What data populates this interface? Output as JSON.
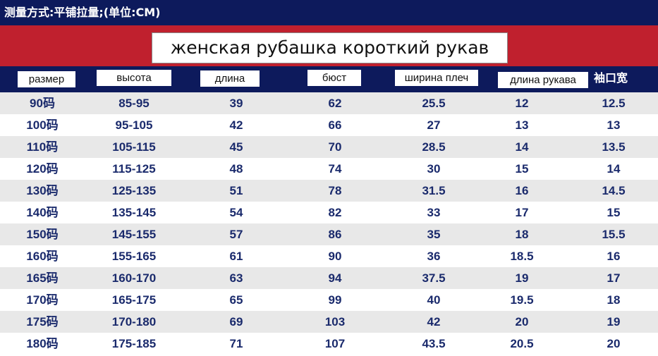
{
  "top_note": "测量方式:平铺拉量;(单位:CM)",
  "title": "женская рубашка короткий рукав",
  "colors": {
    "navy": "#0d1a5c",
    "red": "#c0202e",
    "text_blue": "#1a2a6c",
    "row_gray": "#e8e8e8"
  },
  "headers": [
    "размер",
    "высота",
    "длина",
    "бюст",
    "ширина плеч",
    "длина рукава",
    "袖口宽"
  ],
  "rows": [
    [
      "90码",
      "85-95",
      "39",
      "62",
      "25.5",
      "12",
      "12.5"
    ],
    [
      "100码",
      "95-105",
      "42",
      "66",
      "27",
      "13",
      "13"
    ],
    [
      "110码",
      "105-115",
      "45",
      "70",
      "28.5",
      "14",
      "13.5"
    ],
    [
      "120码",
      "115-125",
      "48",
      "74",
      "30",
      "15",
      "14"
    ],
    [
      "130码",
      "125-135",
      "51",
      "78",
      "31.5",
      "16",
      "14.5"
    ],
    [
      "140码",
      "135-145",
      "54",
      "82",
      "33",
      "17",
      "15"
    ],
    [
      "150码",
      "145-155",
      "57",
      "86",
      "35",
      "18",
      "15.5"
    ],
    [
      "160码",
      "155-165",
      "61",
      "90",
      "36",
      "18.5",
      "16"
    ],
    [
      "165码",
      "160-170",
      "63",
      "94",
      "37.5",
      "19",
      "17"
    ],
    [
      "170码",
      "165-175",
      "65",
      "99",
      "40",
      "19.5",
      "18"
    ],
    [
      "175码",
      "170-180",
      "69",
      "103",
      "42",
      "20",
      "19"
    ],
    [
      "180码",
      "175-185",
      "71",
      "107",
      "43.5",
      "20.5",
      "20"
    ]
  ]
}
